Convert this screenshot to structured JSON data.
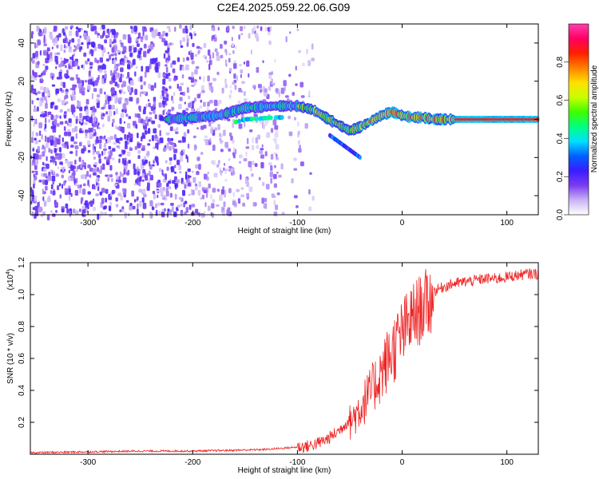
{
  "figure": {
    "title": "C2E4.2025.059.22.06.G09"
  },
  "chart_data": [
    {
      "type": "heatmap",
      "title": "C2E4.2025.059.22.06.G09",
      "xlabel": "Height of straight line (km)",
      "ylabel": "Frequency (Hz)",
      "xlim": [
        -355,
        130
      ],
      "ylim": [
        -50,
        50
      ],
      "xticks": [
        -300,
        -200,
        -100,
        0,
        100
      ],
      "yticks": [
        -40,
        -20,
        0,
        20,
        40
      ],
      "colorbar": {
        "label": "Normalized spectral amplitude",
        "range": [
          0,
          1
        ],
        "ticks": [
          0.0,
          0.2,
          0.4,
          0.6,
          0.8
        ],
        "colormap": [
          "#ffffff",
          "#c9b3f5",
          "#7a3cf0",
          "#3a1cff",
          "#0060ff",
          "#00e0ff",
          "#00ff80",
          "#3cff00",
          "#c8ff00",
          "#ffe000",
          "#ff8000",
          "#ff2000",
          "#ff0060",
          "#ff40b0"
        ]
      },
      "ridge": {
        "x": [
          -225,
          -200,
          -175,
          -150,
          -120,
          -100,
          -85,
          -70,
          -60,
          -50,
          -40,
          -30,
          -20,
          -10,
          0,
          10,
          20,
          30,
          40,
          50,
          60,
          80,
          100,
          130
        ],
        "y": [
          0,
          1,
          2,
          6,
          7,
          7,
          5,
          0,
          -3,
          -6,
          -4,
          -1,
          2,
          4,
          2,
          1,
          1,
          0,
          0,
          0,
          0,
          0,
          0,
          0
        ]
      }
    },
    {
      "type": "line",
      "xlabel": "Height of straight line (km)",
      "ylabel": "SNR (10 * v/v)",
      "scale_label": "(x10",
      "scale_exponent": "4",
      "xlim": [
        -355,
        130
      ],
      "ylim": [
        0,
        1.2
      ],
      "xticks": [
        -300,
        -200,
        -100,
        0,
        100
      ],
      "yticks": [
        0.2,
        0.4,
        0.6,
        0.8,
        1.0,
        1.2
      ],
      "color": "#ee2222",
      "series": [
        {
          "x": [
            -355,
            -300,
            -250,
            -200,
            -160,
            -130,
            -110,
            -90,
            -80,
            -70,
            -60,
            -50,
            -40,
            -30,
            -20,
            -10,
            0,
            10,
            20,
            30,
            40,
            50,
            60,
            70,
            80,
            90,
            100,
            110,
            120,
            130
          ],
          "values": [
            0.01,
            0.015,
            0.02,
            0.02,
            0.025,
            0.03,
            0.04,
            0.05,
            0.07,
            0.1,
            0.15,
            0.22,
            0.32,
            0.42,
            0.55,
            0.68,
            0.8,
            0.9,
            0.97,
            1.02,
            1.05,
            1.07,
            1.08,
            1.09,
            1.1,
            1.1,
            1.11,
            1.12,
            1.13,
            1.13
          ]
        }
      ]
    }
  ]
}
